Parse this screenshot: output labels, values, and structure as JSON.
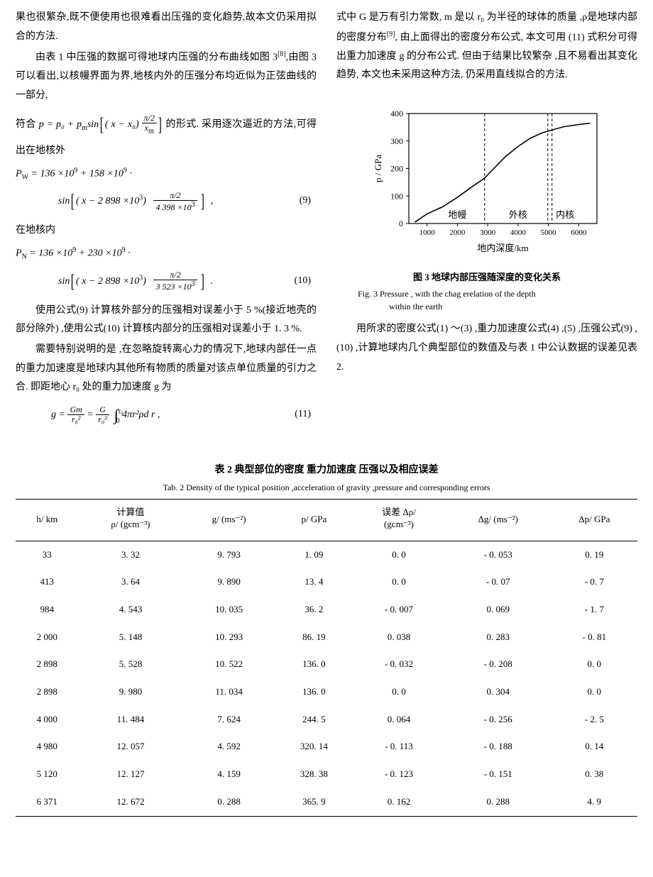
{
  "left": {
    "p1": "果也很繁杂,既不便使用也很难看出压强的变化趋势,故本文仍采用拟合的方法.",
    "p2a": "由表 1 中压强的数据可得地球内压强的分布曲线如图 3",
    "p2ref": "[8]",
    "p2b": ",由图 3 可以看出,以核幔界面为界,地核内外的压强分布均近似为正弦曲线的一部分,",
    "p2c": "符合 ",
    "p2d": " 的形式. 采用逐次逼近的方法,可得出在地核外",
    "eq9_lhs": "P",
    "eq9_sub": "W",
    "eq9_a": " = 136 ×10",
    "eq9_b": " + 158 ×10",
    "eq9_c": " ·",
    "eq9_inside_a": "( x − 2 898 ×10",
    "eq9_inside_b": ") ",
    "eq9_frac_num": "π/2",
    "eq9_frac_den": "4 398 ×10",
    "eq9num": "(9)",
    "mid1": "在地核内",
    "eq10_sub": "N",
    "eq10_b": " + 230 ×10",
    "eq10_frac_den": "3 523 ×10",
    "eq10num": "(10)",
    "p3": "使用公式(9) 计算核外部分的压强相对误差小于 5 %(接近地壳的部分除外) ,使用公式(10) 计算核内部分的压强相对误差小于 1. 3 %.",
    "p4": "需要特别说明的是 ,在忽略旋转离心力的情况下,地球内部任一点的重力加速度是地球内其他所有物质的质量对该点单位质量的引力之合. 即距地心 r₀ 处的重力加速度 g 为",
    "eq11_pre": "g = ",
    "eq11_num1": "Gm",
    "eq11_den1": "r₀²",
    "eq11_mid": " = ",
    "eq11_num2": "G",
    "eq11_den2": "r₀²",
    "eq11_int": "∫",
    "eq11_sup": "r₀",
    "eq11_sub": "0",
    "eq11_post": "4πr²ρd r ,",
    "eq11num": "(11)",
    "inline_eq_a": "p = p₀ + p",
    "inline_eq_b": "sin",
    "inline_eq_c": "( x − x₀) ",
    "inline_eq_num": "π/2",
    "inline_eq_den": "x",
    "inline_eq_den_sub": "m"
  },
  "right": {
    "p1a": "式中 G 是万有引力常数, m 是以 r₀ 为半径的球体的质量 ,ρ是地球内部的密度分布",
    "p1ref": "[9]",
    "p1b": ", 由上面得出的密度分布公式, 本文可用 (11) 式积分可得出重力加速度 g 的分布公式. 但由于结果比较繁杂 ,且不易看出其变化趋势, 本文也未采用这种方法, 仍采用直线拟合的方法.",
    "fig3_cn": "图 3  地球内部压强随深度的变化关系",
    "fig3_en1": "Fig. 3  Pressure , with the chag erelation of the depth",
    "fig3_en2": "within the earth",
    "p2": "用所求的密度公式(1) ～(3) ,重力加速度公式(4) ,(5) ,压强公式(9) ,(10) ,计算地球内几个典型部位的数值及与表 1 中公认数据的误差见表 2."
  },
  "figure3": {
    "type": "line",
    "xlabel": "地内深度/km",
    "ylabel": "p / GPa",
    "xlim": [
      400,
      6600
    ],
    "ylim": [
      0,
      400
    ],
    "xticks": [
      1000,
      2000,
      3000,
      4000,
      5000,
      6000
    ],
    "yticks": [
      0,
      100,
      200,
      300,
      400
    ],
    "regions": [
      {
        "label": "地幔",
        "x": 2000
      },
      {
        "label": "外核",
        "x": 4000
      },
      {
        "label": "内核",
        "x": 5550
      }
    ],
    "vlines": [
      2898,
      4980,
      5120
    ],
    "line_color": "#000000",
    "axis_color": "#000000",
    "bg_color": "#ffffff",
    "line_width": 1.6,
    "curve": [
      [
        600,
        5
      ],
      [
        1000,
        35
      ],
      [
        1500,
        60
      ],
      [
        2000,
        95
      ],
      [
        2500,
        135
      ],
      [
        2898,
        165
      ],
      [
        3200,
        200
      ],
      [
        3600,
        245
      ],
      [
        4000,
        280
      ],
      [
        4400,
        310
      ],
      [
        4800,
        330
      ],
      [
        5120,
        340
      ],
      [
        5500,
        352
      ],
      [
        6000,
        360
      ],
      [
        6371,
        365
      ]
    ]
  },
  "table2": {
    "caption_cn": "表 2  典型部位的密度 重力加速度 压强以及相应误差",
    "caption_en": "Tab. 2 Density of the typical position ,acceleration of gravity ,pressure and corresponding errors",
    "columns": [
      {
        "h1": "h/ km",
        "h2": ""
      },
      {
        "h1": "计算值",
        "h2": "ρ/ (gcm⁻³)"
      },
      {
        "h1": "g/ (ms⁻²)",
        "h2": ""
      },
      {
        "h1": "p/ GPa",
        "h2": ""
      },
      {
        "h1": "误差 Δρ/",
        "h2": "(gcm⁻³)"
      },
      {
        "h1": "Δg/ (ms⁻²)",
        "h2": ""
      },
      {
        "h1": "Δp/ GPa",
        "h2": ""
      }
    ],
    "rows": [
      [
        "33",
        "3. 32",
        "9. 793",
        "1. 09",
        "0. 0",
        "- 0. 053",
        "0. 19"
      ],
      [
        "413",
        "3. 64",
        "9. 890",
        "13. 4",
        "0. 0",
        "- 0. 07",
        "- 0. 7"
      ],
      [
        "984",
        "4. 543",
        "10. 035",
        "36. 2",
        "- 0. 007",
        "0. 069",
        "- 1. 7"
      ],
      [
        "2 000",
        "5. 148",
        "10. 293",
        "86. 19",
        "0. 038",
        "0. 283",
        "- 0. 81"
      ],
      [
        "2 898",
        "5. 528",
        "10. 522",
        "136. 0",
        "- 0. 032",
        "- 0. 208",
        "0. 0"
      ],
      [
        "2 898",
        "9. 980",
        "11. 034",
        "136. 0",
        "0. 0",
        "0. 304",
        "0. 0"
      ],
      [
        "4 000",
        "11. 484",
        "7. 624",
        "244. 5",
        "0. 064",
        "- 0. 256",
        "- 2. 5"
      ],
      [
        "4 980",
        "12. 057",
        "4. 592",
        "320. 14",
        "- 0. 113",
        "- 0. 188",
        "0. 14"
      ],
      [
        "5 120",
        "12. 127",
        "4. 159",
        "328. 38",
        "- 0. 123",
        "- 0. 151",
        "0. 38"
      ],
      [
        "6 371",
        "12. 672",
        "0. 288",
        "365. 9",
        "0. 162",
        "0. 288",
        "4. 9"
      ]
    ]
  }
}
